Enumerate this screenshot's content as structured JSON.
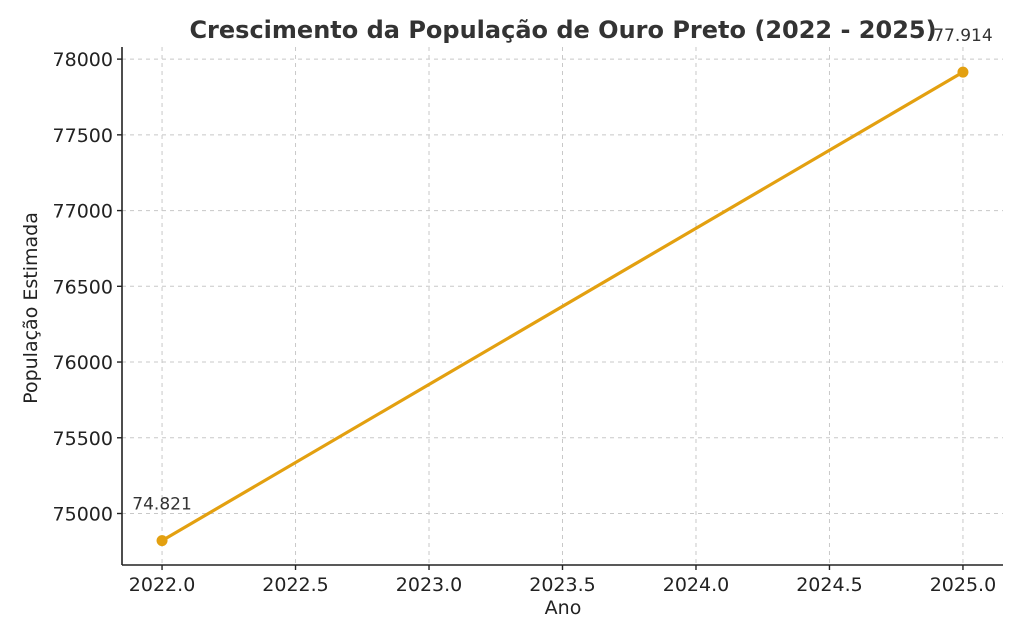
{
  "chart_data": {
    "type": "line",
    "title": "Crescimento da População de Ouro Preto (2022 - 2025)",
    "xlabel": "Ano",
    "ylabel": "População Estimada",
    "x": [
      2022,
      2025
    ],
    "series": [
      {
        "values": [
          74821,
          77914
        ],
        "color": "#E3A010",
        "marker": "circle"
      }
    ],
    "data_labels": [
      "74.821",
      "77.914"
    ],
    "xlim": [
      2021.85,
      2025.15
    ],
    "ylim": [
      74660,
      78080
    ],
    "x_ticks": [
      2022.0,
      2022.5,
      2023.0,
      2023.5,
      2024.0,
      2024.5,
      2025.0
    ],
    "x_tick_labels": [
      "2022.0",
      "2022.5",
      "2023.0",
      "2023.5",
      "2024.0",
      "2024.5",
      "2025.0"
    ],
    "y_ticks": [
      75000,
      75500,
      76000,
      76500,
      77000,
      77500,
      78000
    ],
    "y_tick_labels": [
      "75000",
      "75500",
      "76000",
      "76500",
      "77000",
      "77500",
      "78000"
    ],
    "grid": true,
    "grid_style": "dashed",
    "legend": false
  }
}
